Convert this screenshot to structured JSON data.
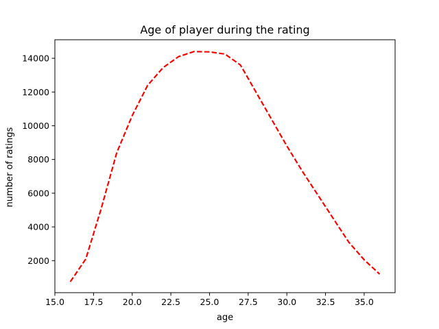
{
  "chart_data": {
    "type": "line",
    "title": "Age of player during the rating",
    "xlabel": "age",
    "ylabel": "number of ratings",
    "xlim": [
      15.0,
      37.0
    ],
    "ylim": [
      100,
      15100
    ],
    "xticks": [
      15.0,
      17.5,
      20.0,
      22.5,
      25.0,
      27.5,
      30.0,
      32.5,
      35.0
    ],
    "xtick_labels": [
      "15.0",
      "17.5",
      "20.0",
      "22.5",
      "25.0",
      "27.5",
      "30.0",
      "32.5",
      "35.0"
    ],
    "yticks": [
      2000,
      4000,
      6000,
      8000,
      10000,
      12000,
      14000
    ],
    "ytick_labels": [
      "2000",
      "4000",
      "6000",
      "8000",
      "10000",
      "12000",
      "14000"
    ],
    "grid": false,
    "series": [
      {
        "color": "#ff0000",
        "line_style": "dashed",
        "x": [
          16,
          17,
          18,
          19,
          20,
          21,
          22,
          23,
          24,
          25,
          26,
          27,
          28,
          29,
          30,
          31,
          32,
          33,
          34,
          35,
          36
        ],
        "values": [
          750,
          2100,
          5100,
          8400,
          10600,
          12400,
          13450,
          14100,
          14400,
          14380,
          14250,
          13600,
          12000,
          10400,
          8800,
          7300,
          5900,
          4500,
          3100,
          2050,
          1200
        ]
      }
    ]
  }
}
